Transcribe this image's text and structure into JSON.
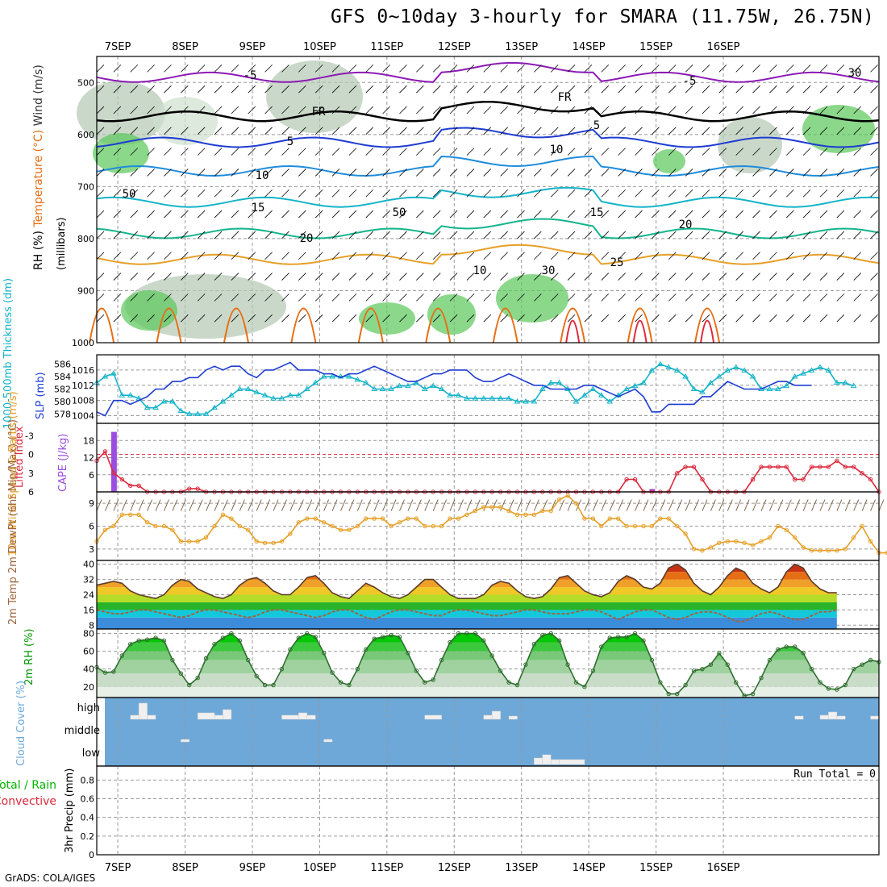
{
  "title": "GFS 0~10day 3-hourly for SMARA (11.75W, 26.75N)",
  "footer": "GrADS: COLA/IGES",
  "colors": {
    "dark_purple": "#8c1ab4",
    "violet": "#9b4de0",
    "blue": "#1e3cd2",
    "light_blue": "#1e8cdc",
    "cyan": "#14b4c8",
    "teal": "#14b48c",
    "orange": "#e6a028",
    "dark_orange": "#e66e14",
    "red": "#dc283c",
    "green": "#00c800",
    "gray_rh": "#b4c8b4",
    "cloud_blue": "#6ea8d8"
  },
  "chart_data": [
    {
      "panel": "upper_air",
      "type": "contour",
      "ylabel_parts": [
        "RH (%)",
        "Temperature (°C)",
        "Wind (m/s)"
      ],
      "ylabel_units": "(millibars)",
      "x_tick_labels": [
        "7SEP",
        "8SEP",
        "9SEP",
        "10SEP",
        "11SEP",
        "12SEP",
        "13SEP",
        "14SEP",
        "15SEP",
        "16SEP"
      ],
      "yticks": [
        500,
        600,
        700,
        800,
        900,
        1000
      ],
      "ylim": [
        450,
        1000
      ],
      "contour_labels": [
        "-5",
        "-5",
        "FR",
        "FR",
        "5",
        "5",
        "10",
        "10",
        "15",
        "15",
        "20",
        "20",
        "25",
        "30",
        "30",
        "50",
        "50",
        "10"
      ],
      "isotherms": [
        {
          "label": "-5",
          "level_mb": 490,
          "color": "dark_purple"
        },
        {
          "label": "FR",
          "level_mb": 565,
          "color": "black"
        },
        {
          "label": "5",
          "level_mb": 615,
          "color": "blue"
        },
        {
          "label": "10",
          "level_mb": 670,
          "color": "light_blue"
        },
        {
          "label": "15",
          "level_mb": 730,
          "color": "cyan"
        },
        {
          "label": "20",
          "level_mb": 790,
          "color": "teal"
        },
        {
          "label": "25",
          "level_mb": 840,
          "color": "orange"
        }
      ]
    },
    {
      "panel": "thickness_slp",
      "type": "line",
      "ylabel_left": "1000-500mb Thickness (dm)",
      "ylabel_right": "SLP (mb)",
      "thickness_ticks": [
        "578",
        "580",
        "582",
        "584",
        "586"
      ],
      "slp_ticks": [
        "1004",
        "1008",
        "1012",
        "1016"
      ],
      "series": [
        {
          "name": "SLP (mb)",
          "color": "blue",
          "ylim": [
            1002,
            1020
          ],
          "values": [
            1005,
            1004,
            1008,
            1008,
            1007,
            1008,
            1009,
            1011,
            1011,
            1013,
            1013,
            1014,
            1014,
            1016,
            1017,
            1016,
            1017,
            1017,
            1015,
            1014,
            1016,
            1016,
            1017,
            1018,
            1016,
            1016,
            1016,
            1015,
            1015,
            1014,
            1015,
            1015,
            1016,
            1017,
            1016,
            1015,
            1014,
            1013,
            1013,
            1014,
            1015,
            1015,
            1016,
            1016,
            1016,
            1014,
            1013,
            1013,
            1014,
            1015,
            1014,
            1013,
            1012,
            1012,
            1011,
            1011,
            1011,
            1011,
            1012,
            1012,
            1011,
            1010,
            1009,
            1010,
            1011,
            1009,
            1005,
            1005,
            1007,
            1007,
            1007,
            1007,
            1009,
            1009,
            1011,
            1013,
            1012,
            1011,
            1011,
            1011,
            1012,
            1013,
            1013,
            1012,
            1012,
            1012
          ]
        },
        {
          "name": "Thickness (dm)",
          "color": "cyan",
          "ylim": [
            576.5,
            587.5
          ],
          "values": [
            583,
            584,
            584.5,
            581,
            581,
            580.5,
            579,
            579,
            580,
            580,
            578.5,
            578,
            578,
            578,
            579,
            580,
            581,
            582,
            582,
            581.5,
            581,
            580.5,
            580.5,
            581,
            581,
            582,
            583,
            584,
            584,
            584,
            584,
            583.5,
            583,
            582,
            582,
            582,
            582.5,
            582.5,
            583,
            582,
            582.5,
            582,
            581,
            581,
            580.5,
            580.5,
            580.5,
            580.5,
            580.5,
            580.5,
            580,
            580,
            580,
            582,
            583,
            583,
            582,
            580,
            581,
            582,
            581,
            580,
            581,
            582,
            582.5,
            583,
            585,
            586,
            585.5,
            585,
            584,
            582,
            581.5,
            583,
            584,
            585,
            585.5,
            585,
            584,
            582,
            582,
            582,
            582.5,
            584,
            584.5,
            585,
            585.5,
            585,
            583,
            583,
            582.5
          ]
        }
      ]
    },
    {
      "panel": "lifted_cape",
      "type": "line+bar",
      "ylabel_left": "Lifted Index",
      "ylabel_right": "CAPE (J/kg)",
      "li_ticks": [
        "-3",
        "0",
        "3",
        "6"
      ],
      "cape_ticks": [
        "6",
        "12",
        "18"
      ],
      "series": [
        {
          "name": "Lifted Index",
          "color": "red",
          "ylim": [
            6,
            -5
          ],
          "values": [
            1,
            -0.5,
            3,
            4,
            5,
            5,
            6,
            6,
            6,
            6,
            6,
            5.5,
            5.5,
            6,
            6,
            6,
            6,
            6,
            6,
            6,
            6,
            6,
            6,
            6,
            6,
            6,
            6,
            6,
            6,
            6,
            6,
            6,
            6,
            6,
            6,
            6,
            6,
            6,
            6,
            6,
            6,
            6,
            6,
            6,
            6,
            6,
            6,
            6,
            6,
            6,
            6,
            6,
            6,
            6,
            6,
            6,
            6,
            6,
            6,
            6,
            6,
            6,
            6,
            4,
            4,
            6,
            6,
            6,
            6,
            3,
            2,
            2,
            4,
            6,
            6,
            6,
            6,
            6,
            4,
            2,
            2,
            2,
            2,
            4,
            4,
            2,
            2,
            2,
            1,
            2,
            2,
            3,
            4,
            6
          ]
        },
        {
          "name": "CAPE (J/kg)",
          "color": "violet",
          "bars": [
            {
              "index": 2,
              "value": 21
            },
            {
              "index": 66,
              "value": 1
            }
          ]
        }
      ]
    },
    {
      "panel": "wind10m",
      "type": "line",
      "ylabel": "10m Wind Speed & Barbs (m/s)",
      "y_ticks": [
        "3",
        "6",
        "9"
      ],
      "series": [
        {
          "name": "10m Wind Speed (m/s)",
          "color": "orange",
          "ylim": [
            1.5,
            10.5
          ],
          "values": [
            4,
            5.5,
            6,
            7.5,
            7.5,
            7.5,
            6.5,
            6,
            6,
            5.5,
            4,
            4,
            4,
            4.5,
            6,
            7.5,
            7,
            6,
            5.5,
            4,
            3.8,
            3.8,
            4,
            5,
            6.5,
            7,
            7,
            6.5,
            6,
            5.5,
            5.5,
            6,
            7,
            7,
            7,
            6,
            6.5,
            7,
            7,
            6,
            6,
            6,
            7,
            7,
            7.5,
            8,
            8.5,
            8.5,
            8.5,
            8,
            7.5,
            7.5,
            7.5,
            8,
            8,
            9.5,
            10,
            9,
            7,
            7,
            6,
            7,
            7,
            6,
            6,
            6,
            6,
            7,
            7,
            6,
            5,
            3,
            2.8,
            3.2,
            3.8,
            4,
            4,
            3.8,
            3.5,
            4,
            4.5,
            6,
            5.5,
            4.5,
            3.2,
            2.8,
            2.8,
            2.8,
            2.8,
            3,
            4.5,
            6,
            4,
            2.5,
            2.5,
            3
          ]
        }
      ]
    },
    {
      "panel": "temp_dewpt",
      "type": "area",
      "ylabel": "2m Temp 2m DewPt (6hr Min/Max) (°C)",
      "y_ticks": [
        "8",
        "16",
        "24",
        "32",
        "40"
      ],
      "series": [
        {
          "name": "2m Temp (°C)",
          "ylim": [
            6,
            42
          ],
          "values": [
            29,
            30,
            31,
            30,
            26,
            24,
            23,
            22,
            24,
            29,
            32,
            31,
            27,
            25,
            23,
            22,
            24,
            29,
            32,
            33,
            30,
            26,
            24,
            24,
            28,
            33,
            34,
            30,
            25,
            23,
            22,
            26,
            30,
            28,
            25,
            23,
            22,
            24,
            28,
            32,
            32,
            28,
            24,
            22,
            22,
            22,
            24,
            29,
            31,
            30,
            26,
            23,
            22,
            23,
            27,
            33,
            34,
            30,
            26,
            24,
            23,
            25,
            31,
            34,
            32,
            28,
            27,
            30,
            38,
            40,
            37,
            30,
            26,
            24,
            28,
            34,
            38,
            36,
            30,
            27,
            25,
            28,
            36,
            40,
            38,
            31,
            27,
            25,
            25
          ]
        },
        {
          "name": "2m DewPt (°C)",
          "ylim": [
            6,
            42
          ],
          "values": [
            16,
            15,
            14,
            14,
            15,
            16,
            16,
            15,
            14,
            13,
            12,
            13,
            15,
            16,
            16,
            15,
            14,
            13,
            12,
            13,
            15,
            16,
            16,
            15,
            14,
            13,
            12,
            13,
            15,
            16,
            16,
            14,
            12,
            11,
            13,
            15,
            16,
            16,
            15,
            14,
            13,
            13,
            15,
            16,
            16,
            15,
            14,
            13,
            13,
            14,
            15,
            16,
            16,
            15,
            14,
            14,
            14,
            15,
            16,
            16,
            15,
            13,
            11,
            13,
            15,
            16,
            16,
            14,
            12,
            11,
            12,
            14,
            15,
            15,
            14,
            12,
            10,
            10,
            12,
            14,
            15,
            14,
            12,
            11,
            11,
            13,
            15,
            15,
            16
          ]
        }
      ]
    },
    {
      "panel": "rh2m",
      "type": "area",
      "ylabel": "2m RH (%)",
      "y_ticks": [
        "20",
        "40",
        "60",
        "80"
      ],
      "series": [
        {
          "name": "2m RH (%)",
          "ylim": [
            8,
            85
          ],
          "values": [
            42,
            36,
            37,
            55,
            68,
            72,
            73,
            75,
            72,
            50,
            35,
            22,
            30,
            52,
            68,
            75,
            80,
            72,
            50,
            32,
            22,
            22,
            40,
            62,
            75,
            80,
            76,
            58,
            36,
            25,
            22,
            40,
            62,
            74,
            76,
            78,
            76,
            58,
            38,
            25,
            28,
            50,
            70,
            80,
            80,
            80,
            72,
            55,
            38,
            25,
            22,
            45,
            68,
            78,
            80,
            72,
            45,
            25,
            20,
            38,
            65,
            75,
            76,
            76,
            80,
            72,
            50,
            25,
            12,
            12,
            22,
            38,
            40,
            45,
            58,
            45,
            25,
            10,
            12,
            30,
            50,
            62,
            65,
            65,
            58,
            40,
            25,
            18,
            17,
            22,
            40,
            45,
            50,
            48
          ]
        }
      ]
    },
    {
      "panel": "cloud_cover",
      "type": "bar",
      "ylabel": "Cloud Cover (%)",
      "levels": [
        "high",
        "middle",
        "low"
      ],
      "segments": [
        {
          "level": "high",
          "start": 4,
          "end": 5,
          "value": 5
        },
        {
          "level": "high",
          "start": 5,
          "end": 6,
          "value": 20
        },
        {
          "level": "high",
          "start": 6,
          "end": 7,
          "value": 5
        },
        {
          "level": "high",
          "start": 12,
          "end": 14,
          "value": 8
        },
        {
          "level": "high",
          "start": 14,
          "end": 15,
          "value": 5
        },
        {
          "level": "high",
          "start": 15,
          "end": 16,
          "value": 12
        },
        {
          "level": "high",
          "start": 22,
          "end": 24,
          "value": 5
        },
        {
          "level": "high",
          "start": 24,
          "end": 25,
          "value": 8
        },
        {
          "level": "high",
          "start": 25,
          "end": 26,
          "value": 5
        },
        {
          "level": "high",
          "start": 39,
          "end": 41,
          "value": 5
        },
        {
          "level": "high",
          "start": 46,
          "end": 47,
          "value": 5
        },
        {
          "level": "high",
          "start": 47,
          "end": 48,
          "value": 10
        },
        {
          "level": "high",
          "start": 49,
          "end": 50,
          "value": 4
        },
        {
          "level": "high",
          "start": 83,
          "end": 84,
          "value": 4
        },
        {
          "level": "high",
          "start": 86,
          "end": 87,
          "value": 5
        },
        {
          "level": "high",
          "start": 87,
          "end": 88,
          "value": 9
        },
        {
          "level": "high",
          "start": 88,
          "end": 89,
          "value": 4
        },
        {
          "level": "high",
          "start": 92,
          "end": 93,
          "value": 4
        },
        {
          "level": "middle",
          "start": 10,
          "end": 11,
          "value": 3
        },
        {
          "level": "middle",
          "start": 27,
          "end": 28,
          "value": 3
        },
        {
          "level": "low",
          "start": 52,
          "end": 53,
          "value": 8
        },
        {
          "level": "low",
          "start": 53,
          "end": 54,
          "value": 12
        },
        {
          "level": "low",
          "start": 54,
          "end": 55,
          "value": 6
        },
        {
          "level": "low",
          "start": 55,
          "end": 58,
          "value": 6
        }
      ]
    },
    {
      "panel": "precip",
      "type": "bar",
      "ylabel": "3hr Precip (mm)",
      "legend_total_rain": "Total / Rain",
      "legend_convective": "Convective",
      "annotation": "Run Total = 0",
      "y_ticks": [
        "0",
        "0.2",
        "0.4",
        "0.6",
        "0.8"
      ],
      "ylim": [
        0,
        0.95
      ],
      "values": []
    }
  ]
}
